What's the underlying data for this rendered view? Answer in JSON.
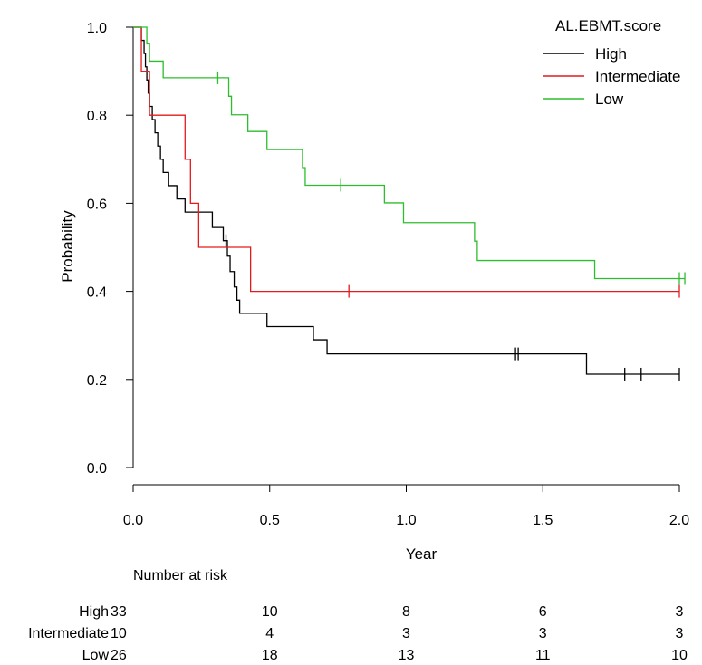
{
  "chart_data": {
    "type": "line",
    "xlabel": "Year",
    "ylabel": "Probability",
    "xlim": [
      0,
      2.05
    ],
    "ylim": [
      -0.02,
      1.02
    ],
    "xticks": [
      0,
      0.5,
      1,
      1.5,
      2
    ],
    "xtick_labels": [
      "0.0",
      "0.5",
      "1.0",
      "1.5",
      "2.0"
    ],
    "yticks": [
      0,
      0.2,
      0.4,
      0.6,
      0.8,
      1
    ],
    "ytick_labels": [
      "0.0",
      "0.2",
      "0.4",
      "0.6",
      "0.8",
      "1.0"
    ],
    "legend": {
      "title": "AL.EBMT.score",
      "position": "top-right"
    },
    "series": [
      {
        "name": "High",
        "color": "#000000",
        "steps": [
          [
            0,
            1.0
          ],
          [
            0.03,
            0.97
          ],
          [
            0.04,
            0.94
          ],
          [
            0.045,
            0.91
          ],
          [
            0.05,
            0.88
          ],
          [
            0.055,
            0.85
          ],
          [
            0.06,
            0.82
          ],
          [
            0.07,
            0.79
          ],
          [
            0.08,
            0.76
          ],
          [
            0.09,
            0.73
          ],
          [
            0.1,
            0.7
          ],
          [
            0.11,
            0.67
          ],
          [
            0.13,
            0.64
          ],
          [
            0.16,
            0.61
          ],
          [
            0.19,
            0.58
          ],
          [
            0.29,
            0.545
          ],
          [
            0.33,
            0.515
          ],
          [
            0.345,
            0.48
          ],
          [
            0.355,
            0.445
          ],
          [
            0.37,
            0.41
          ],
          [
            0.38,
            0.38
          ],
          [
            0.39,
            0.35
          ],
          [
            0.49,
            0.32
          ],
          [
            0.66,
            0.29
          ],
          [
            0.71,
            0.258
          ],
          [
            1.66,
            0.212
          ],
          [
            2.0,
            0.212
          ]
        ],
        "censor_x": [
          0.34,
          1.4,
          1.41,
          1.8,
          1.86,
          2.0
        ]
      },
      {
        "name": "Intermediate",
        "color": "#e41a1c",
        "steps": [
          [
            0,
            1.0
          ],
          [
            0.03,
            0.9
          ],
          [
            0.06,
            0.8
          ],
          [
            0.19,
            0.7
          ],
          [
            0.21,
            0.6
          ],
          [
            0.24,
            0.5
          ],
          [
            0.43,
            0.4
          ],
          [
            2.0,
            0.4
          ]
        ],
        "censor_x": [
          0.79,
          2.0
        ]
      },
      {
        "name": "Low",
        "color": "#2ebd2e",
        "steps": [
          [
            0,
            1.0
          ],
          [
            0.05,
            0.962
          ],
          [
            0.06,
            0.923
          ],
          [
            0.11,
            0.885
          ],
          [
            0.35,
            0.843
          ],
          [
            0.36,
            0.801
          ],
          [
            0.42,
            0.763
          ],
          [
            0.49,
            0.722
          ],
          [
            0.62,
            0.681
          ],
          [
            0.63,
            0.641
          ],
          [
            0.92,
            0.601
          ],
          [
            0.99,
            0.556
          ],
          [
            1.25,
            0.514
          ],
          [
            1.26,
            0.47
          ],
          [
            1.69,
            0.429
          ],
          [
            2.02,
            0.429
          ]
        ],
        "censor_x": [
          0.31,
          0.76,
          2.0,
          2.02
        ]
      }
    ],
    "risk_table": {
      "title": "Number at risk",
      "times": [
        0,
        0.5,
        1,
        1.5,
        2
      ],
      "rows": [
        {
          "label": "High",
          "counts": [
            "33",
            "10",
            "8",
            "6",
            "3"
          ]
        },
        {
          "label": "Intermediate",
          "counts": [
            "10",
            "4",
            "3",
            "3",
            "3"
          ]
        },
        {
          "label": "Low",
          "counts": [
            "26",
            "18",
            "13",
            "11",
            "10"
          ]
        }
      ]
    }
  }
}
